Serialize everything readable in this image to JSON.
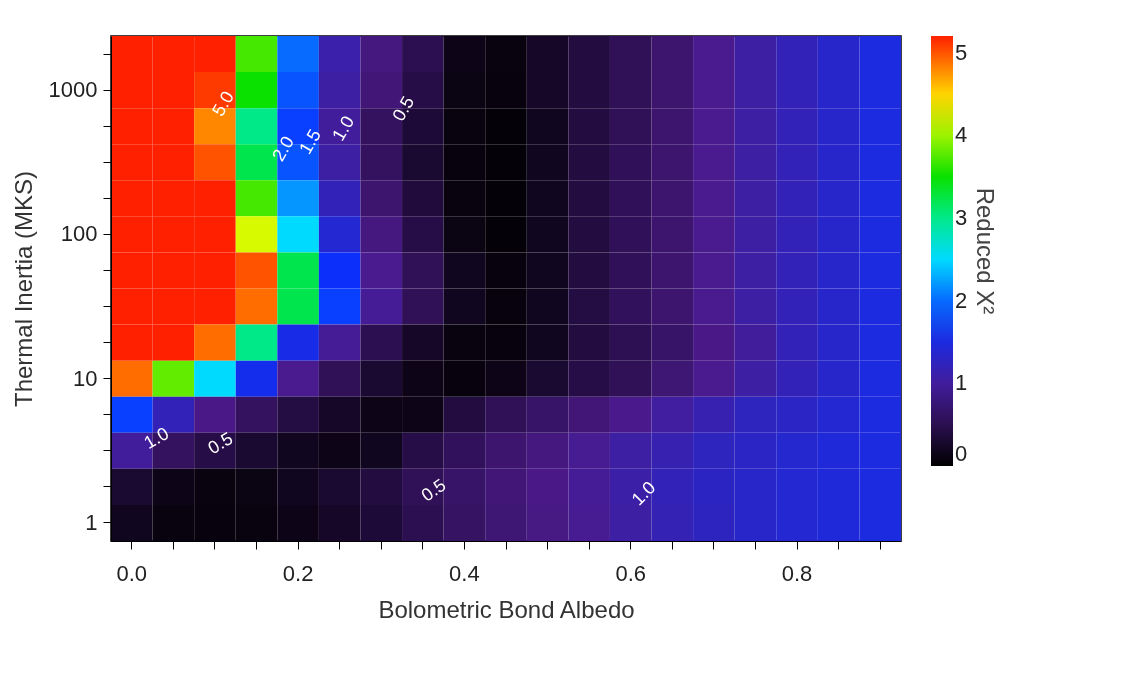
{
  "chart_data": {
    "type": "heatmap",
    "xlabel": "Bolometric Bond Albedo",
    "ylabel": "Thermal Inertia (MKS)",
    "clabel": "Reduced Χ²",
    "categories": [
      "0.0",
      null,
      null,
      null,
      "0.2",
      null,
      null,
      null,
      "0.4",
      null,
      null,
      null,
      "0.6",
      null,
      null,
      null,
      "0.8",
      null,
      null
    ],
    "y_categories": [
      null,
      "1000",
      null,
      null,
      null,
      "100",
      null,
      null,
      null,
      "10",
      null,
      null,
      null,
      "1"
    ],
    "cells": [
      [
        5.2,
        5.2,
        5.2,
        3.7,
        2.0,
        1.1,
        0.8,
        0.5,
        0.15,
        0.1,
        0.25,
        0.4,
        0.55,
        0.7,
        0.9,
        1.05,
        1.2,
        1.35,
        1.5
      ],
      [
        5.2,
        5.2,
        5.1,
        3.5,
        1.9,
        1.05,
        0.75,
        0.45,
        0.12,
        0.08,
        0.25,
        0.4,
        0.55,
        0.7,
        0.9,
        1.05,
        1.2,
        1.35,
        1.5
      ],
      [
        5.2,
        5.2,
        4.8,
        3.0,
        1.8,
        1.0,
        0.6,
        0.35,
        0.1,
        0.05,
        0.2,
        0.4,
        0.55,
        0.7,
        0.9,
        1.05,
        1.2,
        1.35,
        1.5
      ],
      [
        5.2,
        5.2,
        5.0,
        3.2,
        1.9,
        1.05,
        0.6,
        0.3,
        0.08,
        0.05,
        0.2,
        0.4,
        0.56,
        0.7,
        0.9,
        1.05,
        1.2,
        1.35,
        1.5
      ],
      [
        5.2,
        5.2,
        5.2,
        3.7,
        2.2,
        1.2,
        0.7,
        0.38,
        0.1,
        0.05,
        0.2,
        0.4,
        0.56,
        0.7,
        0.9,
        1.05,
        1.2,
        1.35,
        1.5
      ],
      [
        5.2,
        5.2,
        5.2,
        4.2,
        2.5,
        1.4,
        0.8,
        0.45,
        0.12,
        0.05,
        0.2,
        0.4,
        0.56,
        0.7,
        0.9,
        1.05,
        1.2,
        1.35,
        1.5
      ],
      [
        5.2,
        5.2,
        5.2,
        5.0,
        3.2,
        1.7,
        0.9,
        0.55,
        0.2,
        0.08,
        0.2,
        0.4,
        0.56,
        0.7,
        0.9,
        1.05,
        1.2,
        1.35,
        1.5
      ],
      [
        5.2,
        5.2,
        5.2,
        4.9,
        3.2,
        1.8,
        0.95,
        0.55,
        0.2,
        0.08,
        0.2,
        0.42,
        0.57,
        0.7,
        0.9,
        1.05,
        1.2,
        1.35,
        1.5
      ],
      [
        5.2,
        5.2,
        4.9,
        3.0,
        1.55,
        0.95,
        0.5,
        0.25,
        0.1,
        0.08,
        0.2,
        0.4,
        0.52,
        0.65,
        0.85,
        1.0,
        1.2,
        1.35,
        1.5
      ],
      [
        4.9,
        3.8,
        2.5,
        1.6,
        0.9,
        0.55,
        0.3,
        0.15,
        0.08,
        0.15,
        0.3,
        0.45,
        0.55,
        0.72,
        0.9,
        1.05,
        1.2,
        1.35,
        1.5
      ],
      [
        1.8,
        1.2,
        0.85,
        0.6,
        0.42,
        0.25,
        0.15,
        0.15,
        0.4,
        0.55,
        0.65,
        0.75,
        0.88,
        1.02,
        1.15,
        1.25,
        1.3,
        1.4,
        1.5
      ],
      [
        1.0,
        0.6,
        0.45,
        0.3,
        0.2,
        0.15,
        0.2,
        0.45,
        0.58,
        0.7,
        0.8,
        0.92,
        1.05,
        1.15,
        1.25,
        1.3,
        1.38,
        1.45,
        1.5
      ],
      [
        0.3,
        0.15,
        0.1,
        0.12,
        0.2,
        0.3,
        0.4,
        0.55,
        0.65,
        0.75,
        0.85,
        0.95,
        1.08,
        1.2,
        1.28,
        1.33,
        1.4,
        1.45,
        1.5
      ],
      [
        0.2,
        0.1,
        0.08,
        0.1,
        0.15,
        0.25,
        0.35,
        0.5,
        0.62,
        0.72,
        0.82,
        0.92,
        1.05,
        1.18,
        1.27,
        1.33,
        1.4,
        1.45,
        1.5
      ]
    ],
    "clim": [
      0,
      5.2
    ],
    "cticks": [
      0,
      1,
      2,
      3,
      4,
      5
    ],
    "annotations": [
      "5.0",
      "2.0",
      "1.5",
      "1.0",
      "0.5",
      "1.0",
      "0.5",
      "0.5",
      "1.0"
    ]
  }
}
